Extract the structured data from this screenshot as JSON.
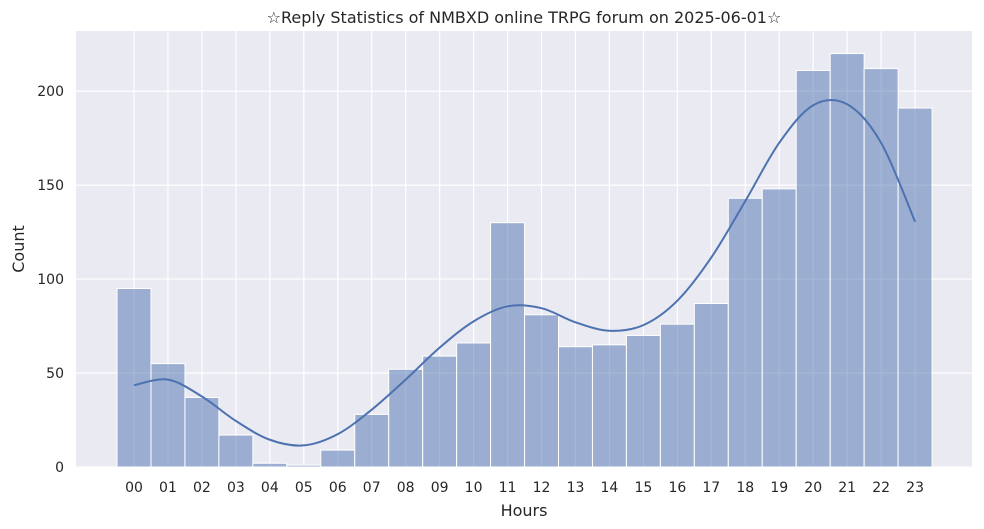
{
  "chart_data": {
    "type": "bar",
    "title": "☆Reply Statistics of NMBXD online TRPG forum on 2025-06-01☆",
    "xlabel": "Hours",
    "ylabel": "Count",
    "categories": [
      "00",
      "01",
      "02",
      "03",
      "04",
      "05",
      "06",
      "07",
      "08",
      "09",
      "10",
      "11",
      "12",
      "13",
      "14",
      "15",
      "16",
      "17",
      "18",
      "19",
      "20",
      "21",
      "22",
      "23"
    ],
    "values": [
      95,
      55,
      37,
      17,
      2,
      1,
      9,
      28,
      52,
      59,
      66,
      130,
      81,
      64,
      65,
      70,
      76,
      87,
      143,
      148,
      211,
      220,
      212,
      191
    ],
    "kde": [
      43.5,
      46.5,
      37.5,
      24.5,
      14.5,
      11.5,
      17.5,
      30.5,
      46.5,
      63.5,
      77.5,
      85.5,
      84.5,
      77.0,
      72.5,
      75.5,
      88.5,
      111.5,
      141.5,
      172.5,
      192.5,
      193.0,
      172.5,
      130.5
    ],
    "ylim": [
      0,
      232
    ],
    "yticks": [
      0,
      50,
      100,
      150,
      200
    ],
    "grid": true,
    "legend": "none",
    "colors": {
      "background": "#eaeaf2",
      "grid": "#ffffff",
      "bar_fill": "#4c72b0",
      "bar_opacity": 0.5,
      "bar_edge": "#ffffff",
      "kde_line": "#4c72b0",
      "text": "#262626"
    }
  }
}
